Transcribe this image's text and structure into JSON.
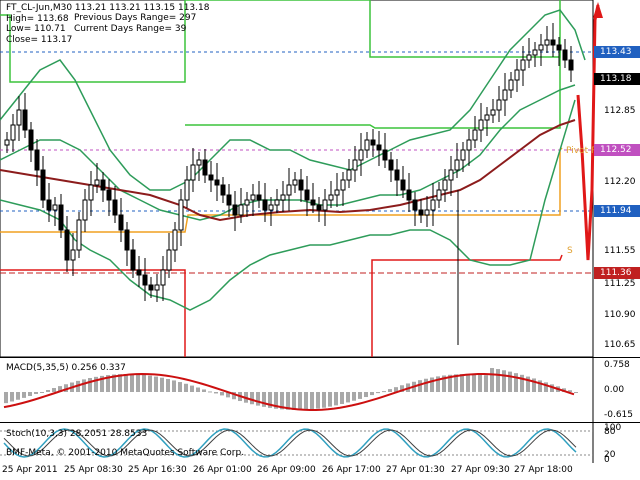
{
  "header": {
    "symbol_line": "FT_CL-Jun,M30  113.21 113.21 113.15 113.18",
    "high": "High= 113.68",
    "low": "Low= 110.71",
    "close": "Close= 113.17",
    "prev_range": "Previous Days Range= 297",
    "cur_range": "Current Days Range= 39"
  },
  "price_axis": [
    "113.43",
    "113.18",
    "112.85",
    "112.52",
    "112.20",
    "111.94",
    "111.55",
    "111.36",
    "111.25",
    "110.90",
    "110.65"
  ],
  "price_tags": [
    {
      "label": "113.43",
      "color": "#2060c0"
    },
    {
      "label": "113.18",
      "color": "#000000"
    },
    {
      "label": "112.52",
      "color": "#c050c0"
    },
    {
      "label": "111.94",
      "color": "#2060c0"
    },
    {
      "label": "111.36",
      "color": "#c02020"
    }
  ],
  "pivot_label": "Pivot P",
  "s_label": "S",
  "macd": {
    "title": "MACD(5,35,5) 0.256 0.337",
    "axis": [
      "0.758",
      "0.00",
      "-0.615"
    ]
  },
  "stoch": {
    "title": "Stoch(10,3,3) 28.2051 28.8533",
    "axis": [
      "100",
      "80",
      "20",
      "0"
    ]
  },
  "copyright": "BMF-Meta, © 2001-2010 MetaQuotes Software Corp.",
  "time_axis": [
    "25 Apr 2011",
    "25 Apr 08:30",
    "25 Apr 16:30",
    "26 Apr 01:00",
    "26 Apr 09:00",
    "26 Apr 17:00",
    "27 Apr 01:30",
    "27 Apr 09:30",
    "27 Apr 18:00"
  ],
  "colors": {
    "bands": "#2e9c5a",
    "ma": "#8c1c1c",
    "green_line": "#3cc43c",
    "red_line": "#e01818",
    "orange_line": "#f0a020",
    "macd_hist": "#a8a8a8",
    "macd_signal": "#cc1010",
    "stoch_main": "#30a0c0",
    "stoch_signal": "#404040"
  }
}
